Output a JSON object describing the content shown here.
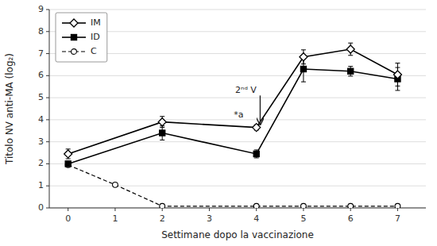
{
  "chart_data": {
    "type": "line",
    "xlabel": "Settimane dopo la vaccinazione",
    "ylabel": "Titolo NV anti-MA (log₂)",
    "series": [
      {
        "name": "IM",
        "color": "#000000",
        "marker": "open-diamond",
        "line_style": "solid",
        "x": [
          0,
          2,
          4,
          5,
          6,
          7
        ],
        "values": [
          2.45,
          3.9,
          3.65,
          6.85,
          7.2,
          6.05
        ],
        "errors": [
          0.22,
          0.25,
          0.12,
          0.32,
          0.28,
          0.52
        ]
      },
      {
        "name": "ID",
        "color": "#000000",
        "marker": "square",
        "line_style": "solid",
        "x": [
          0,
          2,
          4,
          5,
          6,
          7
        ],
        "values": [
          2.0,
          3.4,
          2.45,
          6.3,
          6.2,
          5.85
        ],
        "errors": [
          0.12,
          0.32,
          0.18,
          0.58,
          0.22,
          0.52
        ]
      },
      {
        "name": "C",
        "color": "#000000",
        "marker": "open-circle",
        "line_style": "dashed",
        "x": [
          0,
          1,
          2,
          4,
          5,
          6,
          7
        ],
        "values": [
          1.95,
          1.05,
          0.08,
          0.08,
          0.08,
          0.08,
          0.08
        ]
      }
    ],
    "xlim": [
      -0.4,
      7.6
    ],
    "ylim": [
      0,
      9
    ],
    "xticks": [
      0,
      1,
      2,
      3,
      4,
      5,
      6,
      7
    ],
    "yticks": [
      0,
      1,
      2,
      3,
      4,
      5,
      6,
      7,
      8,
      9
    ],
    "grid": "y",
    "legend": "upper left",
    "annotations": [
      {
        "text": "2ⁿᵈ V",
        "x": 3.55,
        "y": 5.15,
        "arrow": {
          "x": 4.08,
          "y": 3.78,
          "from_x": 4.08,
          "from_y": 5.1
        }
      },
      {
        "text": "*a",
        "x": 3.52,
        "y": 4.2
      }
    ]
  }
}
